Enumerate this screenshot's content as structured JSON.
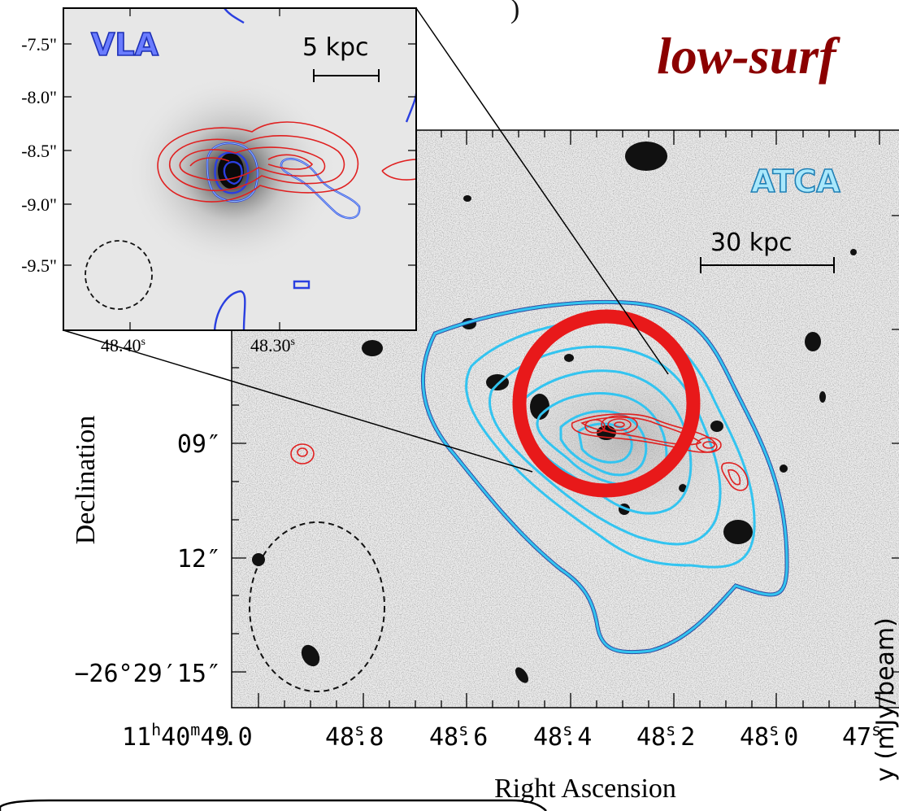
{
  "headline": "low-surf",
  "top_fragment": ")",
  "main_panel": {
    "telescope_label": "ATCA",
    "scale_bar_label": "30 kpc",
    "ra_tick_labels": [
      "11h40m49s.0",
      "48s.8",
      "48s.6",
      "48s.4",
      "48s.2",
      "48s.0",
      "47s"
    ],
    "ra_ticks": {
      "first": {
        "h": "11",
        "hs": "h",
        "m": "40",
        "ms": "m",
        "s": "49",
        "ss": "s",
        ".0": ".0"
      },
      "labels": [
        {
          "int": "48",
          "frac": ".8"
        },
        {
          "int": "48",
          "frac": ".6"
        },
        {
          "int": "48",
          "frac": ".4"
        },
        {
          "int": "48",
          "frac": ".2"
        },
        {
          "int": "48",
          "frac": ".0"
        },
        {
          "int": "47",
          "frac": ""
        }
      ]
    },
    "dec_tick_labels": [
      "09″",
      "12″",
      "−26°29′15″"
    ],
    "xlabel": "Right Ascension",
    "ylabel": "Declination",
    "colorbar_label": "y (mJy/beam)"
  },
  "inset_panel": {
    "telescope_label": "VLA",
    "scale_bar_label": "5 kpc",
    "dec_tick_labels": [
      "-7.5\"",
      "-8.0\"",
      "-8.5\"",
      "-9.0\"",
      "-9.5\""
    ],
    "ra_tick_labels": [
      "48.40s",
      "48.30s"
    ],
    "ra_ticks": [
      {
        "v": "48.40",
        "u": "s"
      },
      {
        "v": "48.30",
        "u": "s"
      }
    ]
  },
  "colors": {
    "headline": "#8b0000",
    "atca_contour": "#33c4f0",
    "vla_contour": "#2a3fe0",
    "red_contour": "#e02020",
    "highlight_circle": "#e8191a"
  }
}
